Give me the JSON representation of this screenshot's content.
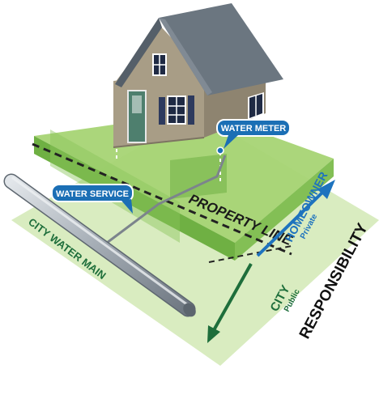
{
  "labels": {
    "water_meter": "WATER METER",
    "water_service": "WATER SERVICE",
    "property_line": "PROPERTY LINE",
    "city_water_main": "CITY WATER MAIN",
    "homeowner": "HOMEOWNER",
    "private": "Private",
    "city": "CITY",
    "public": "Public",
    "responsibility": "RESPONSIBILITY"
  },
  "colors": {
    "lawn_light": "#d9ecc0",
    "lawn_mid": "#9ccc6c",
    "lawn_dark": "#5fa83a",
    "callout_blue": "#1b6fb5",
    "arrow_blue": "#1e73be",
    "arrow_green": "#1e6e3b",
    "text_green": "#1e6e3b",
    "house_siding": "#a89d86",
    "house_roof": "#6b7680",
    "door": "#4e7f6e",
    "shutter": "#2d3a5e"
  }
}
